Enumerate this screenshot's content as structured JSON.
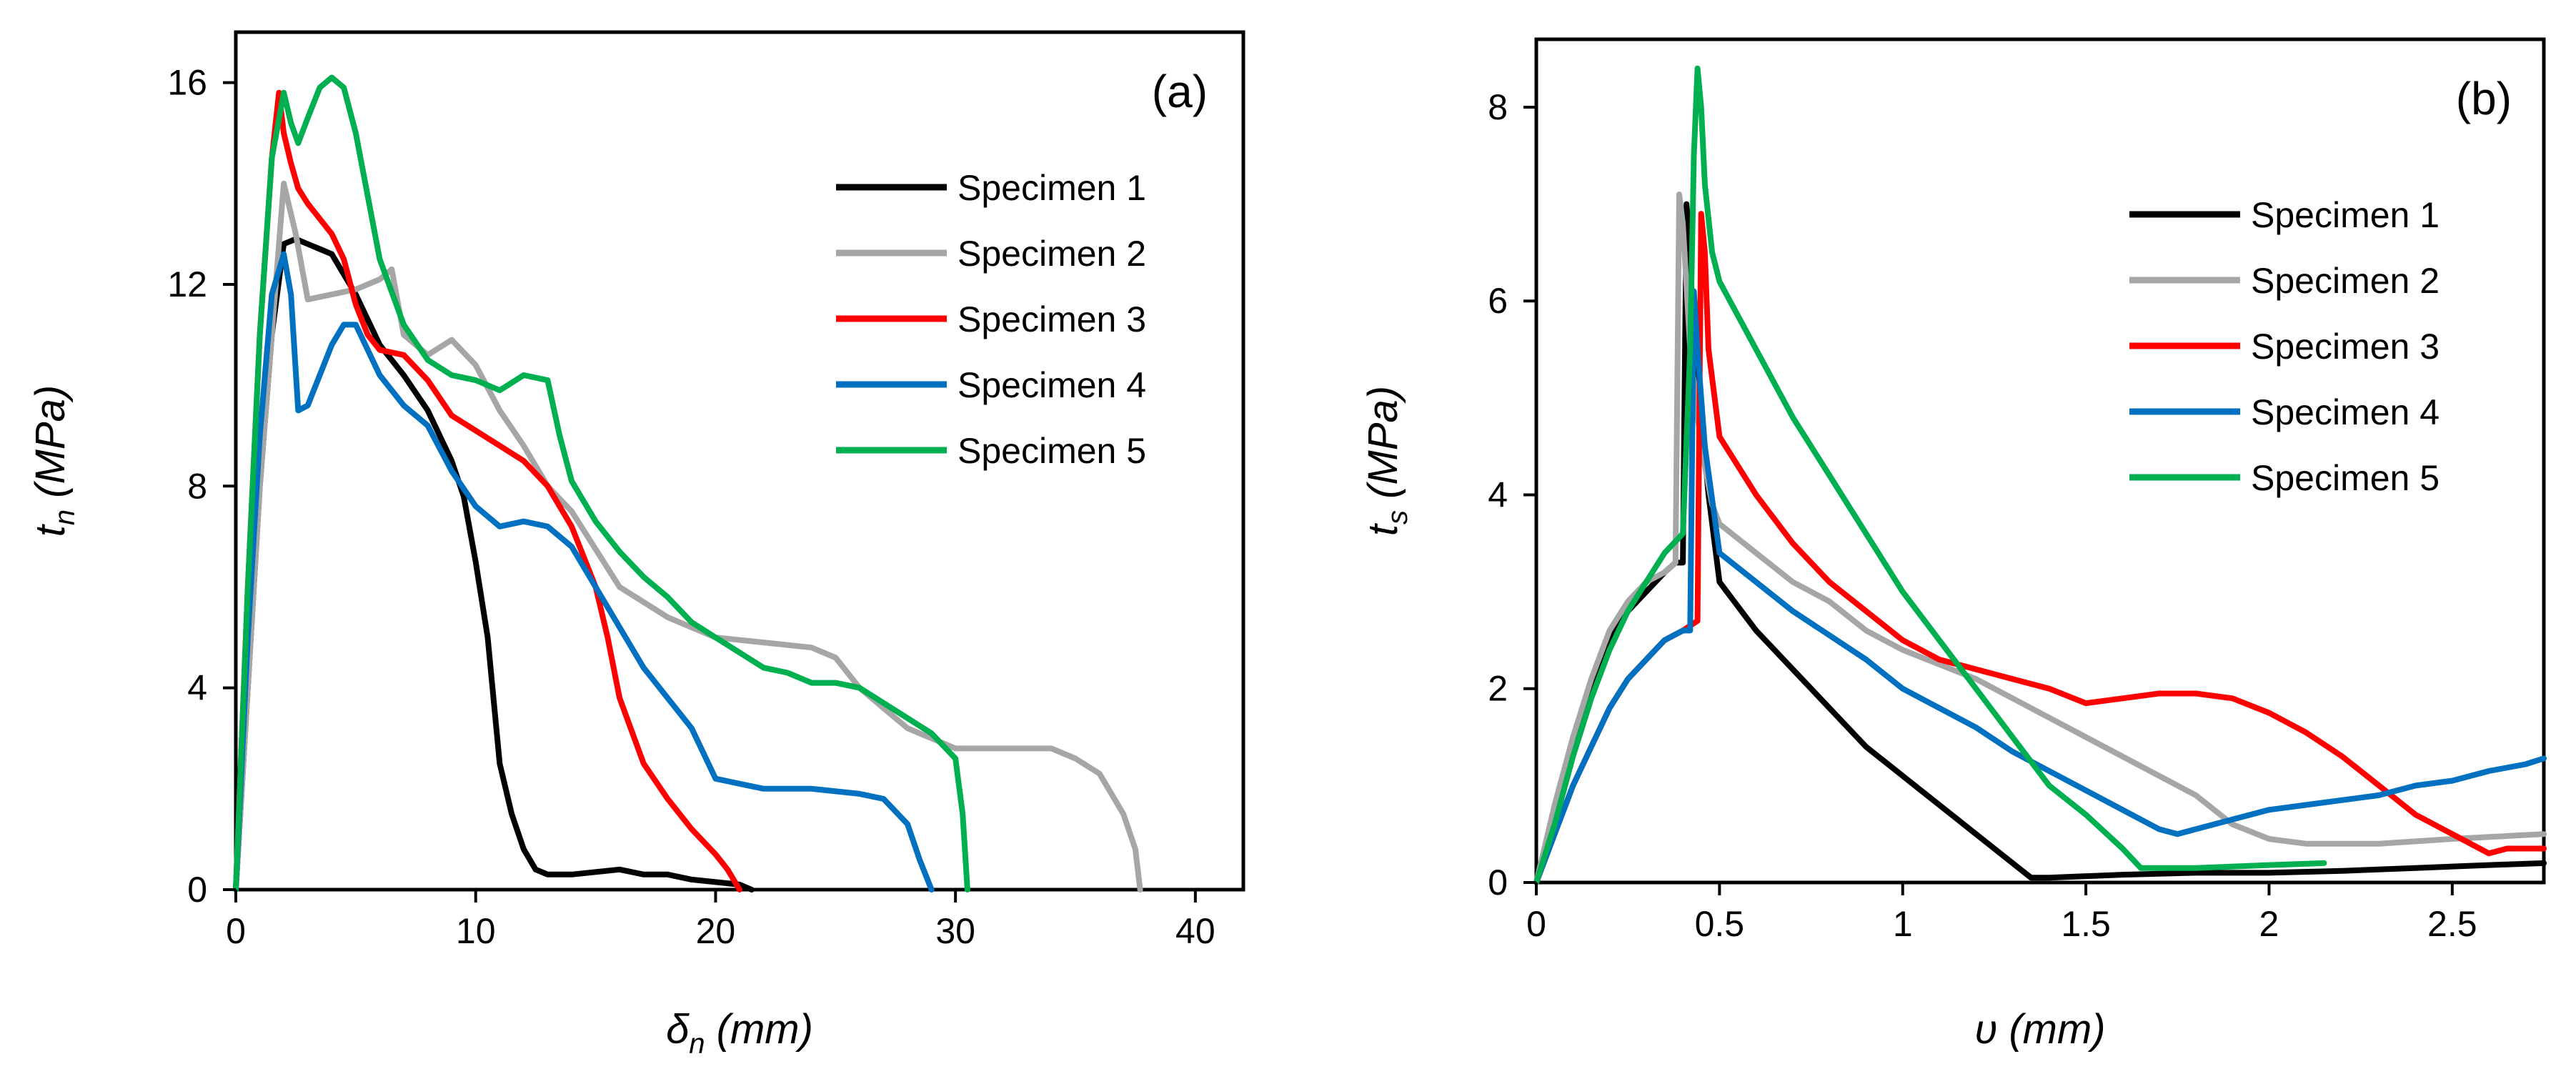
{
  "chart_data": [
    {
      "type": "line",
      "panel_label": "(a)",
      "xlabel": "δ",
      "xlabel_sub": "n",
      "xlabel_unit": " (mm)",
      "ylabel": "t",
      "ylabel_sub": "n",
      "ylabel_unit": " (MPa)",
      "xlim": [
        0,
        42
      ],
      "ylim": [
        0,
        17
      ],
      "xticks": [
        0,
        10,
        20,
        30,
        40
      ],
      "yticks": [
        0,
        4,
        8,
        12,
        16
      ],
      "grid": false,
      "legend_position": "top-right",
      "series": [
        {
          "name": "Specimen 1",
          "color": "#000000",
          "x": [
            0,
            0.5,
            1,
            1.5,
            2,
            2.5,
            3,
            3.5,
            4,
            5,
            6,
            7,
            8,
            9,
            9.5,
            10,
            10.5,
            11,
            11.5,
            12,
            12.5,
            13,
            14,
            15,
            16,
            17,
            18,
            19,
            20,
            21,
            21.5
          ],
          "y": [
            0,
            4,
            8,
            11,
            12.8,
            12.9,
            12.8,
            12.7,
            12.6,
            11.8,
            10.8,
            10.2,
            9.5,
            8.5,
            7.8,
            6.5,
            5,
            2.5,
            1.5,
            0.8,
            0.4,
            0.3,
            0.3,
            0.35,
            0.4,
            0.3,
            0.3,
            0.2,
            0.15,
            0.1,
            0
          ]
        },
        {
          "name": "Specimen 2",
          "color": "#a6a6a6",
          "x": [
            0,
            0.5,
            1,
            1.5,
            2,
            2.5,
            3,
            4,
            5,
            6,
            6.5,
            7,
            8,
            9,
            10,
            11,
            12,
            13,
            14,
            16,
            18,
            20,
            22,
            24,
            25,
            26,
            27,
            28,
            29,
            30,
            31,
            32,
            33,
            34,
            35,
            36,
            37,
            37.5,
            37.7
          ],
          "y": [
            0,
            4,
            8,
            11,
            14,
            13,
            11.7,
            11.8,
            11.9,
            12.1,
            12.3,
            11,
            10.6,
            10.9,
            10.4,
            9.5,
            8.8,
            8,
            7.5,
            6,
            5.4,
            5,
            4.9,
            4.8,
            4.6,
            4,
            3.6,
            3.2,
            3,
            2.8,
            2.8,
            2.8,
            2.8,
            2.8,
            2.6,
            2.3,
            1.5,
            0.8,
            0
          ]
        },
        {
          "name": "Specimen 3",
          "color": "#ff0000",
          "x": [
            0,
            0.5,
            1,
            1.5,
            1.8,
            2,
            2.3,
            2.6,
            3,
            3.5,
            4,
            4.5,
            5,
            5.5,
            6,
            7,
            8,
            9,
            10,
            11,
            12,
            13,
            14,
            15,
            15.5,
            16,
            17,
            18,
            19,
            20,
            20.5,
            21
          ],
          "y": [
            0,
            6,
            11,
            14.5,
            15.8,
            15,
            14.4,
            13.9,
            13.6,
            13.3,
            13,
            12.5,
            11.6,
            11,
            10.7,
            10.6,
            10.1,
            9.4,
            9.1,
            8.8,
            8.5,
            8,
            7.2,
            6,
            5,
            3.8,
            2.5,
            1.8,
            1.2,
            0.7,
            0.4,
            0
          ]
        },
        {
          "name": "Specimen 4",
          "color": "#0070c0",
          "x": [
            0,
            0.5,
            1,
            1.5,
            2,
            2.3,
            2.6,
            3,
            3.5,
            4,
            4.5,
            5,
            6,
            7,
            8,
            9,
            10,
            11,
            12,
            13,
            14,
            15,
            16,
            17,
            18,
            19,
            20,
            21,
            22,
            24,
            26,
            27,
            28,
            28.5,
            29
          ],
          "y": [
            0,
            5,
            9,
            11.8,
            12.6,
            11.8,
            9.5,
            9.6,
            10.2,
            10.8,
            11.2,
            11.2,
            10.2,
            9.6,
            9.2,
            8.3,
            7.6,
            7.2,
            7.3,
            7.2,
            6.8,
            6,
            5.2,
            4.4,
            3.8,
            3.2,
            2.2,
            2.1,
            2,
            2,
            1.9,
            1.8,
            1.3,
            0.6,
            0
          ]
        },
        {
          "name": "Specimen 5",
          "color": "#00b050",
          "x": [
            0,
            0.5,
            1,
            1.5,
            2,
            2.3,
            2.6,
            3,
            3.5,
            4,
            4.5,
            5,
            6,
            7,
            8,
            9,
            10,
            11,
            12,
            13,
            13.5,
            14,
            15,
            16,
            17,
            18,
            19,
            20,
            21,
            22,
            23,
            24,
            25,
            26,
            27,
            28,
            29,
            30,
            30.3,
            30.5
          ],
          "y": [
            0,
            6,
            11,
            14.5,
            15.8,
            15.2,
            14.8,
            15.3,
            15.9,
            16.1,
            15.9,
            15,
            12.5,
            11.2,
            10.5,
            10.2,
            10.1,
            9.9,
            10.2,
            10.1,
            9,
            8.1,
            7.3,
            6.7,
            6.2,
            5.8,
            5.3,
            5,
            4.7,
            4.4,
            4.3,
            4.1,
            4.1,
            4,
            3.7,
            3.4,
            3.1,
            2.6,
            1.5,
            0
          ]
        }
      ]
    },
    {
      "type": "line",
      "panel_label": "(b)",
      "xlabel": "υ",
      "xlabel_sub": "",
      "xlabel_unit": " (mm)",
      "ylabel": "t",
      "ylabel_sub": "s",
      "ylabel_unit": " (MPa)",
      "xlim": [
        0,
        2.75
      ],
      "ylim": [
        0,
        8.7
      ],
      "xticks": [
        0,
        0.5,
        1,
        1.5,
        2,
        2.5
      ],
      "yticks": [
        0,
        2,
        4,
        6,
        8
      ],
      "grid": false,
      "legend_position": "top-right",
      "series": [
        {
          "name": "Specimen 1",
          "color": "#000000",
          "x": [
            0,
            0.05,
            0.1,
            0.15,
            0.2,
            0.25,
            0.3,
            0.35,
            0.38,
            0.4,
            0.41,
            0.42,
            0.43,
            0.45,
            0.47,
            0.5,
            0.6,
            0.7,
            0.8,
            0.9,
            1.0,
            1.1,
            1.2,
            1.3,
            1.35,
            1.4,
            1.6,
            1.8,
            2.0,
            2.2,
            2.4,
            2.6,
            2.75
          ],
          "y": [
            0,
            0.7,
            1.4,
            2.0,
            2.5,
            2.8,
            3.0,
            3.2,
            3.3,
            3.3,
            7.0,
            6.5,
            5.5,
            4.8,
            4.0,
            3.1,
            2.6,
            2.2,
            1.8,
            1.4,
            1.1,
            0.8,
            0.5,
            0.2,
            0.05,
            0.05,
            0.08,
            0.1,
            0.1,
            0.12,
            0.15,
            0.18,
            0.2
          ]
        },
        {
          "name": "Specimen 2",
          "color": "#a6a6a6",
          "x": [
            0,
            0.05,
            0.1,
            0.15,
            0.2,
            0.25,
            0.3,
            0.35,
            0.38,
            0.39,
            0.4,
            0.42,
            0.45,
            0.48,
            0.5,
            0.6,
            0.7,
            0.8,
            0.9,
            1.0,
            1.2,
            1.4,
            1.6,
            1.8,
            1.9,
            2.0,
            2.1,
            2.3,
            2.5,
            2.75
          ],
          "y": [
            0,
            0.8,
            1.5,
            2.1,
            2.6,
            2.9,
            3.1,
            3.2,
            3.3,
            7.1,
            6.8,
            5.5,
            4.5,
            3.9,
            3.7,
            3.4,
            3.1,
            2.9,
            2.6,
            2.4,
            2.1,
            1.7,
            1.3,
            0.9,
            0.6,
            0.45,
            0.4,
            0.4,
            0.45,
            0.5
          ]
        },
        {
          "name": "Specimen 3",
          "color": "#ff0000",
          "x": [
            0,
            0.05,
            0.1,
            0.15,
            0.2,
            0.25,
            0.3,
            0.35,
            0.4,
            0.44,
            0.45,
            0.46,
            0.47,
            0.5,
            0.55,
            0.6,
            0.7,
            0.8,
            0.9,
            1.0,
            1.1,
            1.2,
            1.3,
            1.4,
            1.5,
            1.6,
            1.7,
            1.8,
            1.9,
            2.0,
            2.1,
            2.2,
            2.3,
            2.4,
            2.5,
            2.6,
            2.65,
            2.75
          ],
          "y": [
            0,
            0.5,
            1.0,
            1.4,
            1.8,
            2.1,
            2.3,
            2.5,
            2.6,
            2.7,
            6.9,
            6.5,
            5.5,
            4.6,
            4.3,
            4.0,
            3.5,
            3.1,
            2.8,
            2.5,
            2.3,
            2.2,
            2.1,
            2.0,
            1.85,
            1.9,
            1.95,
            1.95,
            1.9,
            1.75,
            1.55,
            1.3,
            1.0,
            0.7,
            0.5,
            0.3,
            0.35,
            0.35
          ]
        },
        {
          "name": "Specimen 4",
          "color": "#0070c0",
          "x": [
            0,
            0.05,
            0.1,
            0.15,
            0.2,
            0.25,
            0.3,
            0.35,
            0.4,
            0.42,
            0.43,
            0.44,
            0.46,
            0.5,
            0.6,
            0.7,
            0.8,
            0.9,
            1.0,
            1.1,
            1.2,
            1.3,
            1.4,
            1.5,
            1.6,
            1.7,
            1.75,
            1.8,
            1.9,
            2.0,
            2.1,
            2.2,
            2.3,
            2.4,
            2.5,
            2.6,
            2.7,
            2.75
          ],
          "y": [
            0,
            0.5,
            1.0,
            1.4,
            1.8,
            2.1,
            2.3,
            2.5,
            2.6,
            2.6,
            6.1,
            5.5,
            4.5,
            3.4,
            3.1,
            2.8,
            2.55,
            2.3,
            2.0,
            1.8,
            1.6,
            1.35,
            1.15,
            0.95,
            0.75,
            0.55,
            0.5,
            0.55,
            0.65,
            0.75,
            0.8,
            0.85,
            0.9,
            1.0,
            1.05,
            1.15,
            1.22,
            1.28
          ]
        },
        {
          "name": "Specimen 5",
          "color": "#00b050",
          "x": [
            0,
            0.05,
            0.1,
            0.15,
            0.2,
            0.25,
            0.3,
            0.35,
            0.4,
            0.42,
            0.43,
            0.44,
            0.45,
            0.46,
            0.48,
            0.5,
            0.6,
            0.7,
            0.8,
            0.9,
            1.0,
            1.1,
            1.2,
            1.3,
            1.4,
            1.5,
            1.6,
            1.65,
            1.7,
            1.8,
            2.0,
            2.15
          ],
          "y": [
            0,
            0.6,
            1.3,
            1.9,
            2.4,
            2.8,
            3.1,
            3.4,
            3.6,
            5.5,
            7.5,
            8.4,
            8.0,
            7.2,
            6.5,
            6.2,
            5.5,
            4.8,
            4.2,
            3.6,
            3.0,
            2.5,
            2.0,
            1.5,
            1.0,
            0.7,
            0.35,
            0.15,
            0.15,
            0.15,
            0.18,
            0.2
          ]
        }
      ]
    }
  ]
}
